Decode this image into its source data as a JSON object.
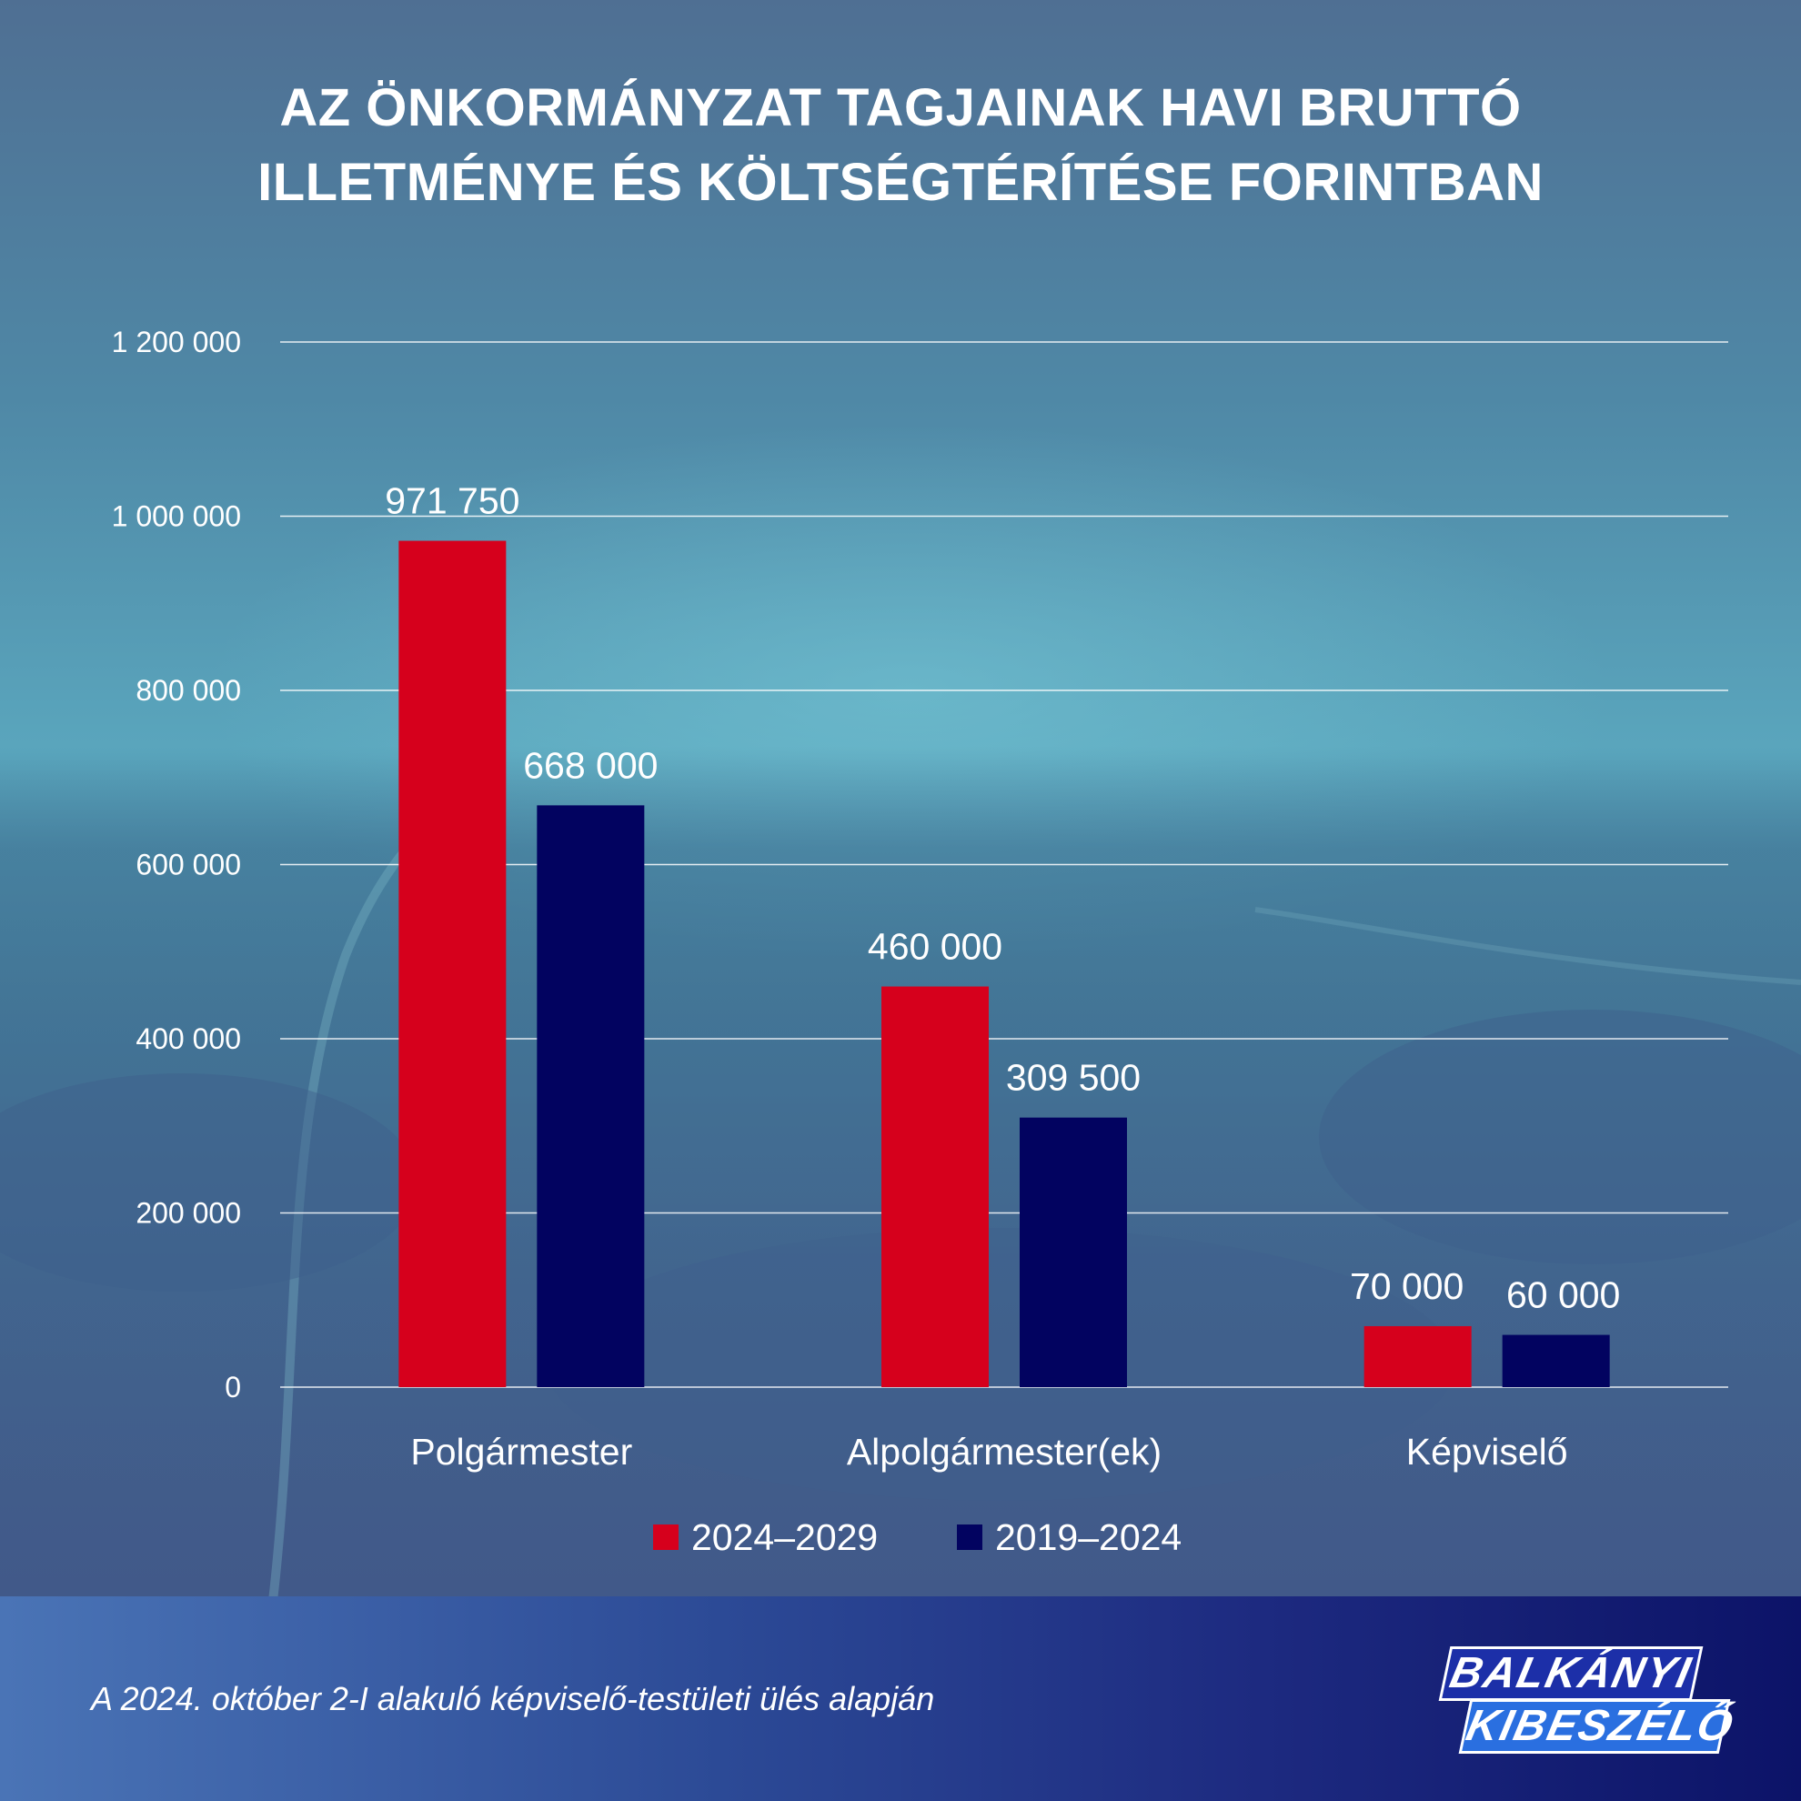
{
  "title_lines": [
    "AZ ÖNKORMÁNYZAT TAGJAINAK HAVI BRUTTÓ",
    "ILLETMÉNYE ÉS KÖLTSÉGTÉRÍTÉSE FORINTBAN"
  ],
  "chart_data": {
    "type": "bar",
    "title": "AZ ÖNKORMÁNYZAT TAGJAINAK HAVI BRUTTÓ ILLETMÉNYE ÉS KÖLTSÉGTÉRÍTÉSE FORINTBAN",
    "categories": [
      "Polgármester",
      "Alpolgármester(ek)",
      "Képviselő"
    ],
    "series": [
      {
        "name": "2024–2029",
        "color": "#d6001c",
        "values": [
          971750,
          460000,
          70000
        ],
        "labels": [
          "971 750",
          "460 000",
          "70 000"
        ]
      },
      {
        "name": "2019–2024",
        "color": "#020360",
        "values": [
          668000,
          309500,
          60000
        ],
        "labels": [
          "668 000",
          "309 500",
          "60 000"
        ]
      }
    ],
    "ylim": [
      0,
      1200000
    ],
    "yticks": [
      0,
      200000,
      400000,
      600000,
      800000,
      1000000,
      1200000
    ],
    "ytick_labels": [
      "0",
      "200 000",
      "400 000",
      "600 000",
      "800 000",
      "1 000 000",
      "1 200 000"
    ],
    "grid": true,
    "legend_position": "bottom-center"
  },
  "footer": {
    "source": "A 2024. október 2-I alakuló képviselő-testületi ülés alapján",
    "logo_line1": "BALKÁNYI",
    "logo_line2": "KIBESZÉLŐ"
  }
}
